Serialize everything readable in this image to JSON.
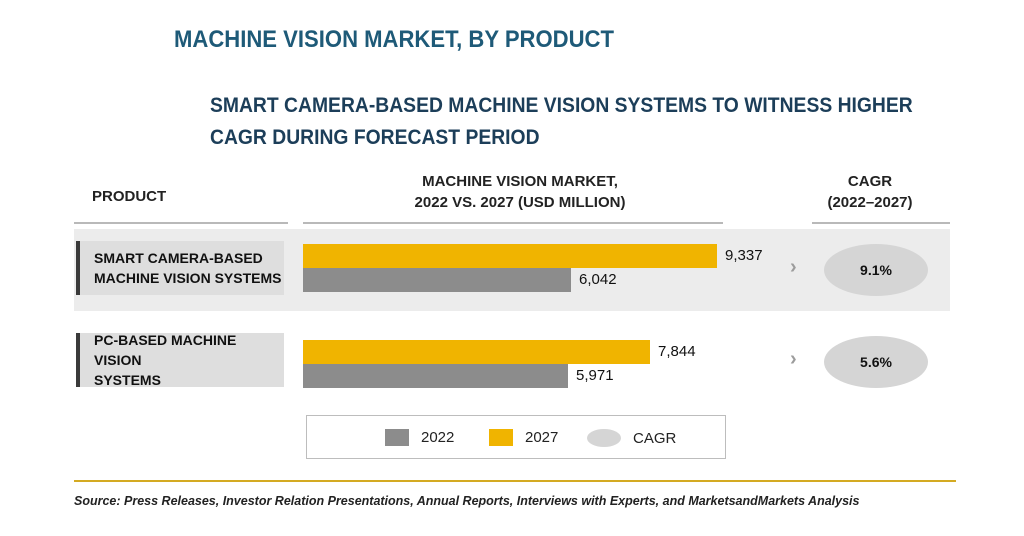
{
  "header": {
    "title": "MACHINE VISION MARKET, BY PRODUCT",
    "subtitle": "SMART CAMERA-BASED MACHINE VISION SYSTEMS TO WITNESS HIGHER CAGR DURING FORECAST PERIOD"
  },
  "columns": {
    "product": "PRODUCT",
    "market_line1": "MACHINE VISION MARKET,",
    "market_line2": "2022 VS. 2027 (USD MILLION)",
    "cagr_line1": "CAGR",
    "cagr_line2": "(2022–2027)"
  },
  "colors": {
    "2022": "#8c8c8c",
    "2027": "#f0b400",
    "cagr": "#d5d5d5",
    "title": "#1e5a78",
    "accent_rule": "#d4aa22"
  },
  "chart_data": {
    "type": "bar",
    "orientation": "horizontal",
    "categories": [
      "SMART CAMERA-BASED MACHINE VISION SYSTEMS",
      "PC-BASED MACHINE VISION SYSTEMS"
    ],
    "series": [
      {
        "name": "2027",
        "values": [
          9337,
          7844
        ],
        "labels": [
          "9,337",
          "7,844"
        ]
      },
      {
        "name": "2022",
        "values": [
          6042,
          5971
        ],
        "labels": [
          "6,042",
          "5,971"
        ]
      }
    ],
    "cagr": {
      "name": "CAGR",
      "values": [
        9.1,
        5.6
      ],
      "labels": [
        "9.1%",
        "5.6%"
      ]
    },
    "legend": [
      "2022",
      "2027",
      "CAGR"
    ],
    "legend_position": "bottom"
  },
  "rows": [
    {
      "line1": "SMART CAMERA-BASED",
      "line2": "MACHINE VISION SYSTEMS"
    },
    {
      "line1": "PC-BASED MACHINE VISION",
      "line2": "SYSTEMS"
    }
  ],
  "legend": {
    "item_2022": "2022",
    "item_2027": "2027",
    "item_cagr": "CAGR"
  },
  "source": "Source: Press Releases, Investor Relation Presentations, Annual Reports, Interviews with Experts, and MarketsandMarkets Analysis"
}
